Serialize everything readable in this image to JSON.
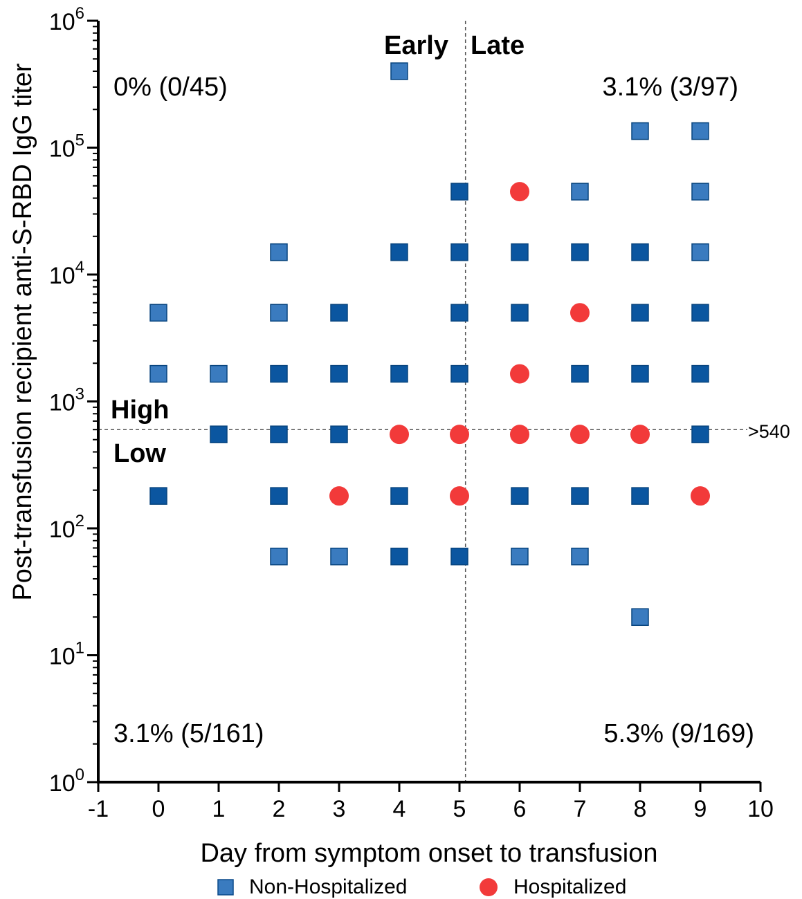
{
  "chart_data": {
    "type": "scatter",
    "title": "",
    "xlabel": "Day from symptom onset to transfusion",
    "ylabel": "Post-transfusion recipient anti-S-RBD IgG titer",
    "xlim": [
      -1,
      10
    ],
    "ylim": [
      1,
      1000000
    ],
    "yscale": "log",
    "x_ticks": [
      "-1",
      "0",
      "1",
      "2",
      "3",
      "4",
      "5",
      "6",
      "7",
      "8",
      "9",
      "10"
    ],
    "y_ticks": [
      {
        "base": "10",
        "exp": "0"
      },
      {
        "base": "10",
        "exp": "1"
      },
      {
        "base": "10",
        "exp": "2"
      },
      {
        "base": "10",
        "exp": "3"
      },
      {
        "base": "10",
        "exp": "4"
      },
      {
        "base": "10",
        "exp": "5"
      },
      {
        "base": "10",
        "exp": "6"
      }
    ],
    "grid": false,
    "legend_position": "bottom",
    "reference_lines": {
      "vertical_x": 5.1,
      "horizontal_y": 600,
      "horizontal_label": ">540",
      "early_label": "Early",
      "late_label": "Late",
      "high_label": "High",
      "low_label": "Low"
    },
    "annotations": {
      "top_left": "0% (0/45)",
      "top_right": "3.1% (3/97)",
      "bottom_left": "3.1% (5/161)",
      "bottom_right": "5.3% (9/169)"
    },
    "series": [
      {
        "name": "Non-Hospitalized",
        "marker": "square",
        "color": "#0b56a0",
        "light_color": "#3a7bbf",
        "points": [
          {
            "x": 4,
            "y": 400000,
            "shade": "light"
          },
          {
            "x": 8,
            "y": 135000,
            "shade": "light"
          },
          {
            "x": 9,
            "y": 135000,
            "shade": "light"
          },
          {
            "x": 5,
            "y": 45000,
            "shade": "dark"
          },
          {
            "x": 7,
            "y": 45000,
            "shade": "light"
          },
          {
            "x": 9,
            "y": 45000,
            "shade": "light"
          },
          {
            "x": 2,
            "y": 15000,
            "shade": "light"
          },
          {
            "x": 4,
            "y": 15000,
            "shade": "dark"
          },
          {
            "x": 5,
            "y": 15000,
            "shade": "dark"
          },
          {
            "x": 6,
            "y": 15000,
            "shade": "dark"
          },
          {
            "x": 7,
            "y": 15000,
            "shade": "dark"
          },
          {
            "x": 8,
            "y": 15000,
            "shade": "dark"
          },
          {
            "x": 9,
            "y": 15000,
            "shade": "light"
          },
          {
            "x": 0,
            "y": 5000,
            "shade": "light"
          },
          {
            "x": 2,
            "y": 5000,
            "shade": "light"
          },
          {
            "x": 3,
            "y": 5000,
            "shade": "dark"
          },
          {
            "x": 5,
            "y": 5000,
            "shade": "dark"
          },
          {
            "x": 6,
            "y": 5000,
            "shade": "dark"
          },
          {
            "x": 8,
            "y": 5000,
            "shade": "dark"
          },
          {
            "x": 9,
            "y": 5000,
            "shade": "dark"
          },
          {
            "x": 0,
            "y": 1650,
            "shade": "light"
          },
          {
            "x": 1,
            "y": 1650,
            "shade": "light"
          },
          {
            "x": 2,
            "y": 1650,
            "shade": "dark"
          },
          {
            "x": 3,
            "y": 1650,
            "shade": "dark"
          },
          {
            "x": 4,
            "y": 1650,
            "shade": "dark"
          },
          {
            "x": 5,
            "y": 1650,
            "shade": "dark"
          },
          {
            "x": 7,
            "y": 1650,
            "shade": "dark"
          },
          {
            "x": 8,
            "y": 1650,
            "shade": "dark"
          },
          {
            "x": 9,
            "y": 1650,
            "shade": "dark"
          },
          {
            "x": 1,
            "y": 550,
            "shade": "dark"
          },
          {
            "x": 2,
            "y": 550,
            "shade": "dark"
          },
          {
            "x": 3,
            "y": 550,
            "shade": "dark"
          },
          {
            "x": 9,
            "y": 550,
            "shade": "dark"
          },
          {
            "x": 0,
            "y": 180,
            "shade": "dark"
          },
          {
            "x": 2,
            "y": 180,
            "shade": "dark"
          },
          {
            "x": 4,
            "y": 180,
            "shade": "dark"
          },
          {
            "x": 6,
            "y": 180,
            "shade": "dark"
          },
          {
            "x": 7,
            "y": 180,
            "shade": "dark"
          },
          {
            "x": 8,
            "y": 180,
            "shade": "dark"
          },
          {
            "x": 2,
            "y": 60,
            "shade": "light"
          },
          {
            "x": 3,
            "y": 60,
            "shade": "light"
          },
          {
            "x": 4,
            "y": 60,
            "shade": "dark"
          },
          {
            "x": 5,
            "y": 60,
            "shade": "dark"
          },
          {
            "x": 6,
            "y": 60,
            "shade": "light"
          },
          {
            "x": 7,
            "y": 60,
            "shade": "light"
          },
          {
            "x": 8,
            "y": 20,
            "shade": "light"
          }
        ]
      },
      {
        "name": "Hospitalized",
        "marker": "circle",
        "color": "#f23a3a",
        "points": [
          {
            "x": 6,
            "y": 45000
          },
          {
            "x": 7,
            "y": 5000
          },
          {
            "x": 6,
            "y": 1650
          },
          {
            "x": 4,
            "y": 550
          },
          {
            "x": 5,
            "y": 550
          },
          {
            "x": 6,
            "y": 550
          },
          {
            "x": 7,
            "y": 550
          },
          {
            "x": 8,
            "y": 550
          },
          {
            "x": 3,
            "y": 180
          },
          {
            "x": 5,
            "y": 180
          },
          {
            "x": 9,
            "y": 180
          }
        ]
      }
    ]
  }
}
